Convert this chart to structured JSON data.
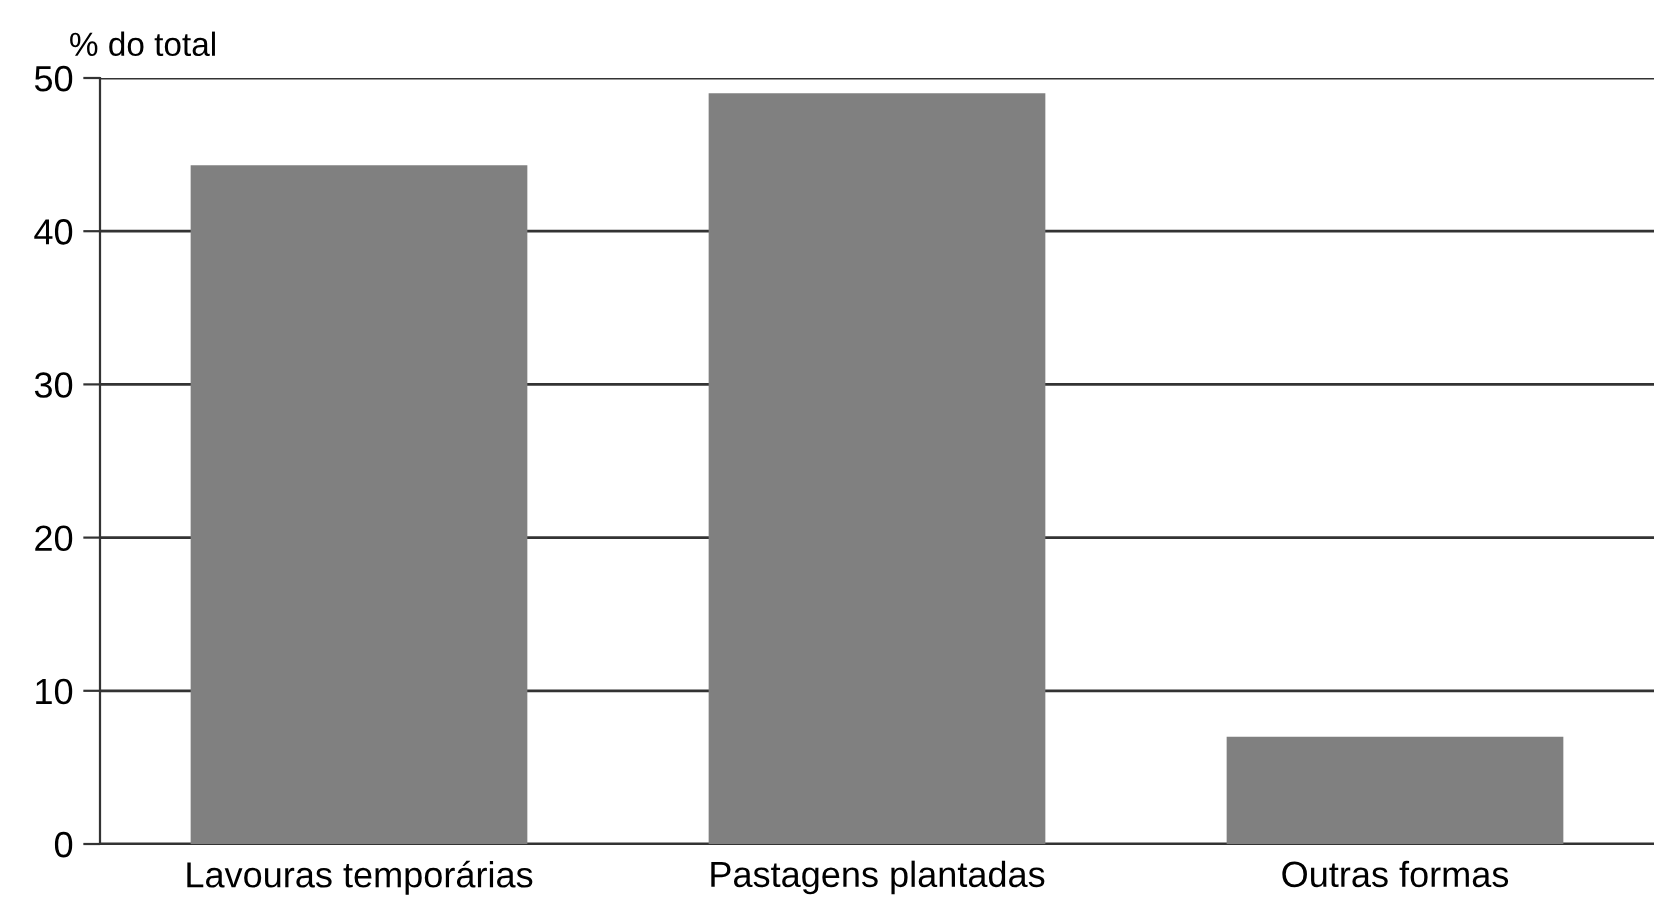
{
  "chart_data": {
    "type": "bar",
    "ylabel": "% do total",
    "categories": [
      "Lavouras temporárias",
      "Pastagens plantadas",
      "Outras formas"
    ],
    "values": [
      44.3,
      49.0,
      7.0
    ],
    "color": "#808080",
    "ylim": [
      0,
      50
    ],
    "yticks": [
      0,
      10,
      20,
      30,
      40,
      50
    ],
    "grid": "y",
    "legend": false
  }
}
